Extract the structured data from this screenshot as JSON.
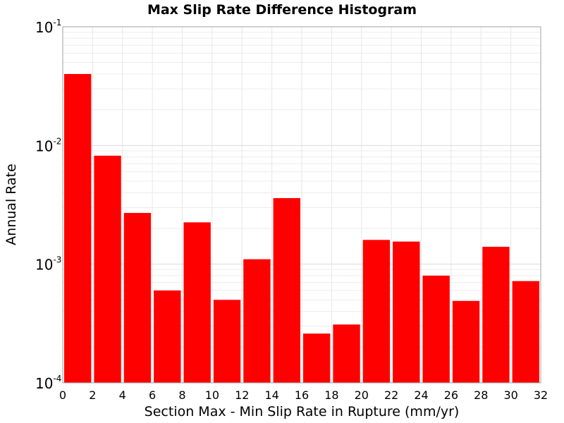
{
  "chart_data": {
    "type": "bar",
    "title": "Max Slip Rate Difference Histogram",
    "xlabel": "Section Max - Min Slip Rate in Rupture (mm/yr)",
    "ylabel": "Annual Rate",
    "xlim": [
      0,
      32
    ],
    "ylim": [
      0.0001,
      0.1
    ],
    "yscale": "log",
    "grid": true,
    "legend": "none",
    "bar_color": "#ff0000",
    "bin_width": 2,
    "x": [
      1,
      3,
      5,
      7,
      9,
      11,
      13,
      15,
      17,
      19,
      21,
      23,
      25,
      27,
      29,
      31
    ],
    "values": [
      0.04,
      0.0082,
      0.0027,
      0.0006,
      0.00225,
      0.0005,
      0.0011,
      0.0036,
      0.00026,
      0.00031,
      0.0016,
      0.00155,
      0.0008,
      0.00049,
      0.0014,
      0.00072
    ],
    "x_ticks": [
      "0",
      "2",
      "4",
      "6",
      "8",
      "10",
      "12",
      "14",
      "16",
      "18",
      "20",
      "22",
      "24",
      "26",
      "28",
      "30",
      "32"
    ],
    "y_ticks": [
      {
        "value": 0.1,
        "base": "10",
        "exp": "-1"
      },
      {
        "value": 0.01,
        "base": "10",
        "exp": "-2"
      },
      {
        "value": 0.001,
        "base": "10",
        "exp": "-3"
      },
      {
        "value": 0.0001,
        "base": "10",
        "exp": "-4"
      }
    ]
  }
}
